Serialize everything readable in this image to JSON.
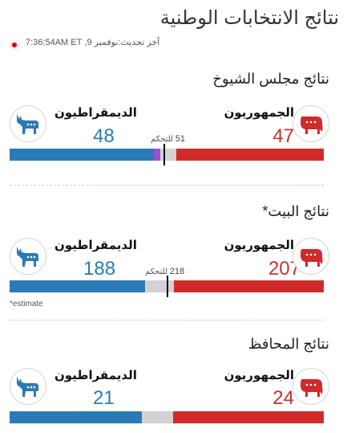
{
  "page": {
    "title": "نتائج الانتخابات الوطنية",
    "updated": "آخر تحديث:نوفمبر 9, 7:36:54AM ET"
  },
  "colors": {
    "dem": "#2a7ab5",
    "rep": "#d02a2a",
    "ind": "#9b4fd0",
    "undecided": "#d2d2d2"
  },
  "icons": {
    "dem": "donkey-icon",
    "rep": "elephant-icon",
    "live": "live-dot-icon"
  },
  "sections": [
    {
      "title": "نتائج مجلس الشيوخ",
      "rep": {
        "label": "الجمهوريون",
        "count": "47"
      },
      "dem": {
        "label": "الديمقراطيون",
        "count": "48"
      },
      "control": {
        "number": "51",
        "label": "للتحكم"
      },
      "bar": {
        "total": 100,
        "dem": 46,
        "ind": 2,
        "rep": 47,
        "threshold": 51
      }
    },
    {
      "title": "نتائج البيت*",
      "rep": {
        "label": "الجمهوريون",
        "count": "207"
      },
      "dem": {
        "label": "الديمقراطيون",
        "count": "188"
      },
      "control": {
        "number": "218",
        "label": "للتحكم"
      },
      "bar": {
        "total": 435,
        "dem": 188,
        "ind": 0,
        "rep": 207,
        "threshold": 218
      },
      "footnote": "*estimate"
    },
    {
      "title": "نتائج المحافظ",
      "rep": {
        "label": "الجمهوريون",
        "count": "24"
      },
      "dem": {
        "label": "الديمقراطيون",
        "count": "21"
      },
      "bar": {
        "total": 50,
        "dem": 21,
        "ind": 0,
        "rep": 24
      }
    }
  ]
}
